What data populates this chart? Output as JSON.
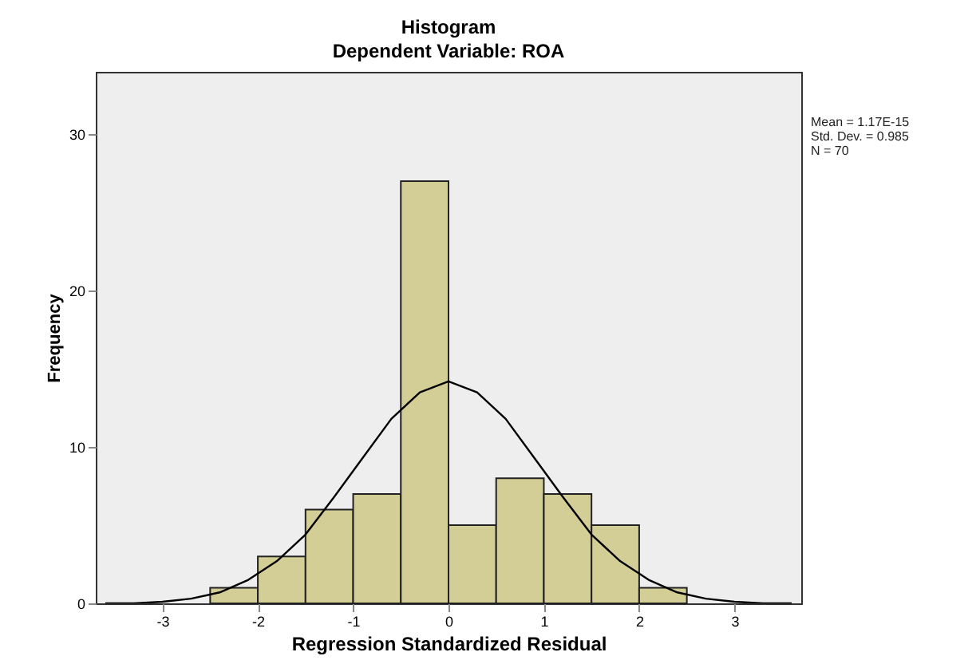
{
  "chart_data": {
    "type": "histogram",
    "title": "Histogram",
    "subtitle": "Dependent Variable: ROA",
    "xlabel": "Regression Standardized Residual",
    "ylabel": "Frequency",
    "bins": [
      -2.5,
      -2,
      -1.5,
      -1,
      -0.5,
      0,
      0.5,
      1,
      1.5,
      2,
      2.5
    ],
    "values": [
      1,
      3,
      6,
      7,
      27,
      5,
      8,
      7,
      5,
      1
    ],
    "color": "#d3cd96",
    "series": [
      {
        "type": "line",
        "color": "#000000",
        "x": [
          -3.6,
          -3.3,
          -3.0,
          -2.7,
          -2.4,
          -2.1,
          -1.8,
          -1.5,
          -1.2,
          -0.9,
          -0.6,
          -0.3,
          0,
          0.3,
          0.6,
          0.9,
          1.2,
          1.5,
          1.8,
          2.1,
          2.4,
          2.7,
          3.0,
          3.3,
          3.6
        ],
        "values": [
          0,
          0,
          0.1,
          0.3,
          0.7,
          1.5,
          2.7,
          4.4,
          6.8,
          9.3,
          11.8,
          13.5,
          14.2,
          13.5,
          11.8,
          9.3,
          6.8,
          4.4,
          2.7,
          1.5,
          0.7,
          0.3,
          0.1,
          0,
          0
        ]
      }
    ],
    "xlim": [
      -3.7,
      3.7
    ],
    "xticks": [
      -3,
      -2,
      -1,
      0,
      1,
      2,
      3
    ],
    "ylim": [
      0,
      34
    ],
    "yticks": [
      0,
      10,
      20,
      30
    ],
    "grid": false,
    "annotations": [
      "Mean = 1.17E-15",
      "Std. Dev. = 0.985",
      "N = 70"
    ]
  }
}
